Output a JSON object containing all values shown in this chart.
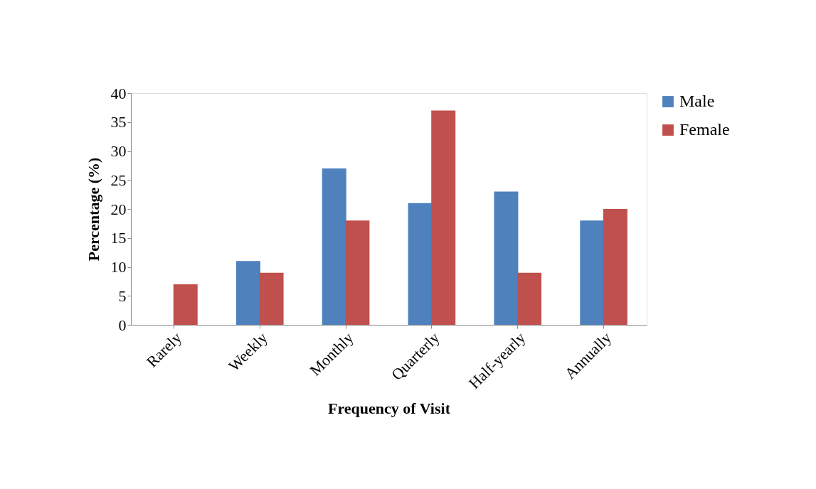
{
  "chart_data": {
    "type": "bar",
    "xlabel": "Frequency of Visit",
    "ylabel": "Percentage (%)",
    "categories": [
      "Rarely",
      "Weekly",
      "Monthly",
      "Quarterly",
      "Half-yearly",
      "Annually"
    ],
    "series": [
      {
        "name": "Male",
        "color": "#4f81bd",
        "values": [
          0,
          11,
          27,
          21,
          23,
          18
        ]
      },
      {
        "name": "Female",
        "color": "#c0504d",
        "values": [
          7,
          9,
          18,
          37,
          9,
          20
        ]
      }
    ],
    "ylim": [
      0,
      40
    ],
    "yticks": [
      0,
      5,
      10,
      15,
      20,
      25,
      30,
      35,
      40
    ],
    "grid": false,
    "legend": "right"
  }
}
